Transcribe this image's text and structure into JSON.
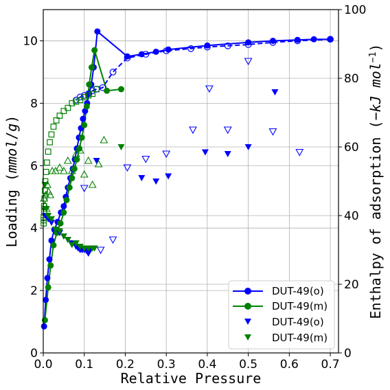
{
  "chart_data": {
    "type": "scatter",
    "xlabel": "Relative Pressure",
    "ylabel_left": "Loading (mmol/g)",
    "ylabel_right": "Enthalpy of adsorption (−kJ mol⁻¹)",
    "xlim": [
      0,
      0.72
    ],
    "ylim_left": [
      0,
      11
    ],
    "ylim_right": [
      0,
      100
    ],
    "grid": true,
    "legend_position": "lower-right",
    "x_ticks": [
      "0.0",
      "0.1",
      "0.2",
      "0.3",
      "0.4",
      "0.5",
      "0.6",
      "0.7"
    ],
    "y_ticks_left": [
      "0",
      "2",
      "4",
      "6",
      "8",
      "10"
    ],
    "y_ticks_right": [
      "0",
      "20",
      "40",
      "60",
      "80",
      "100"
    ],
    "colors": {
      "o": "#0000ff",
      "m": "#008000"
    },
    "legend": [
      "DUT-49(o)",
      "DUT-49(m)",
      "DUT-49(o)",
      "DUT-49(m)"
    ],
    "series": [
      {
        "name": "DUT-49(o)",
        "kind": "adsorption",
        "axis": "left",
        "color": "#0000ff",
        "marker": "filled-circle",
        "line": "solid",
        "x": [
          0.002,
          0.006,
          0.01,
          0.015,
          0.02,
          0.027,
          0.035,
          0.043,
          0.05,
          0.055,
          0.06,
          0.066,
          0.072,
          0.077,
          0.082,
          0.087,
          0.092,
          0.097,
          0.102,
          0.107,
          0.112,
          0.117,
          0.123,
          0.132,
          0.205,
          0.24,
          0.275,
          0.305,
          0.4,
          0.5,
          0.56,
          0.62,
          0.66,
          0.7
        ],
        "y": [
          0.85,
          1.7,
          2.4,
          3.0,
          3.6,
          3.95,
          4.2,
          4.5,
          4.7,
          5.0,
          5.3,
          5.6,
          5.9,
          6.2,
          6.55,
          6.9,
          7.2,
          7.5,
          7.75,
          8.0,
          8.3,
          8.6,
          9.15,
          10.3,
          9.5,
          9.57,
          9.65,
          9.72,
          9.85,
          9.95,
          10.0,
          10.03,
          10.05,
          10.05
        ]
      },
      {
        "name": "DUT-49(o)",
        "kind": "desorption",
        "axis": "left",
        "color": "#0000ff",
        "marker": "open-circle",
        "line": "dashed",
        "x": [
          0.7,
          0.62,
          0.56,
          0.5,
          0.45,
          0.4,
          0.36,
          0.3,
          0.25,
          0.205,
          0.17,
          0.145,
          0.13,
          0.12,
          0.11,
          0.1,
          0.09,
          0.08
        ],
        "y": [
          10.05,
          10.0,
          9.95,
          9.88,
          9.84,
          9.8,
          9.75,
          9.68,
          9.57,
          9.45,
          9.0,
          8.5,
          8.45,
          8.4,
          8.3,
          8.25,
          8.2,
          8.1
        ]
      },
      {
        "name": "DUT-49(m)",
        "kind": "adsorption",
        "axis": "left",
        "color": "#008000",
        "marker": "filled-circle",
        "line": "solid",
        "x": [
          0.004,
          0.012,
          0.018,
          0.025,
          0.033,
          0.042,
          0.05,
          0.057,
          0.064,
          0.07,
          0.076,
          0.082,
          0.088,
          0.094,
          0.1,
          0.106,
          0.112,
          0.118,
          0.125,
          0.155,
          0.19
        ],
        "y": [
          1.05,
          2.1,
          2.8,
          3.45,
          3.85,
          4.15,
          4.5,
          4.9,
          5.3,
          5.6,
          5.9,
          6.2,
          6.55,
          6.9,
          7.3,
          7.9,
          8.6,
          9.15,
          9.7,
          8.4,
          8.45
        ]
      },
      {
        "name": "DUT-49(m)",
        "kind": "desorption",
        "axis": "left",
        "color": "#008000",
        "marker": "open-square",
        "line": "none",
        "x": [
          0.13,
          0.12,
          0.11,
          0.1,
          0.09,
          0.08,
          0.07,
          0.06,
          0.05,
          0.04,
          0.032,
          0.025,
          0.02,
          0.016,
          0.012,
          0.009,
          0.007,
          0.005,
          0.004,
          0.003,
          0.002,
          0.002,
          0.001,
          0.001,
          0.001
        ],
        "y": [
          8.45,
          8.3,
          8.25,
          8.2,
          8.1,
          8.05,
          8.0,
          7.85,
          7.75,
          7.6,
          7.45,
          7.25,
          7.0,
          6.75,
          6.45,
          6.1,
          5.8,
          5.5,
          5.2,
          4.95,
          4.7,
          4.5,
          4.35,
          4.25,
          4.15
        ]
      },
      {
        "name": "DUT-49(o)",
        "kind": "enthalpy",
        "axis": "right",
        "color": "#0000ff",
        "marker": "filled-triangle-down",
        "line": "none",
        "x": [
          0.005,
          0.012,
          0.02,
          0.03,
          0.04,
          0.05,
          0.06,
          0.07,
          0.08,
          0.085,
          0.09,
          0.095,
          0.1,
          0.105,
          0.11,
          0.115,
          0.13,
          0.24,
          0.275,
          0.305,
          0.395,
          0.45,
          0.5,
          0.565
        ],
        "y": [
          40,
          39,
          38,
          36,
          35,
          34,
          33,
          32,
          31,
          30.5,
          30,
          30,
          30,
          29.8,
          29,
          30,
          56,
          51,
          50,
          51.5,
          58.5,
          58,
          60,
          76
        ]
      },
      {
        "name": "DUT-49(m)",
        "kind": "enthalpy",
        "axis": "right",
        "color": "#008000",
        "marker": "filled-triangle-down",
        "line": "none",
        "x": [
          0.004,
          0.008,
          0.012,
          0.02,
          0.03,
          0.04,
          0.05,
          0.06,
          0.07,
          0.08,
          0.09,
          0.1,
          0.11,
          0.12,
          0.125,
          0.19
        ],
        "y": [
          49,
          42,
          40,
          39,
          36,
          35.5,
          34,
          33,
          31.5,
          32,
          31,
          30.5,
          30.5,
          30.5,
          30.5,
          60
        ]
      },
      {
        "name": "DUT-49(o)",
        "kind": "enthalpy-desorption",
        "axis": "right",
        "color": "#0000ff",
        "marker": "open-triangle-down",
        "line": "none",
        "x": [
          0.1,
          0.14,
          0.17,
          0.205,
          0.25,
          0.3,
          0.365,
          0.405,
          0.45,
          0.5,
          0.56,
          0.625
        ],
        "y": [
          48,
          30,
          33,
          54,
          56.5,
          58,
          65,
          77,
          65,
          85,
          64.5,
          58.5
        ]
      },
      {
        "name": "DUT-49(m)",
        "kind": "enthalpy-desorption",
        "axis": "right",
        "color": "#008000",
        "marker": "open-triangle-up",
        "line": "none",
        "x": [
          0.002,
          0.004,
          0.006,
          0.008,
          0.01,
          0.013,
          0.017,
          0.022,
          0.03,
          0.04,
          0.05,
          0.06,
          0.07,
          0.08,
          0.09,
          0.1,
          0.11,
          0.12,
          0.135,
          0.148
        ],
        "y": [
          45,
          43,
          46,
          42,
          49,
          47,
          46,
          53,
          53,
          54,
          53,
          56,
          53,
          58,
          59,
          52,
          56,
          49,
          55,
          62
        ]
      }
    ]
  }
}
